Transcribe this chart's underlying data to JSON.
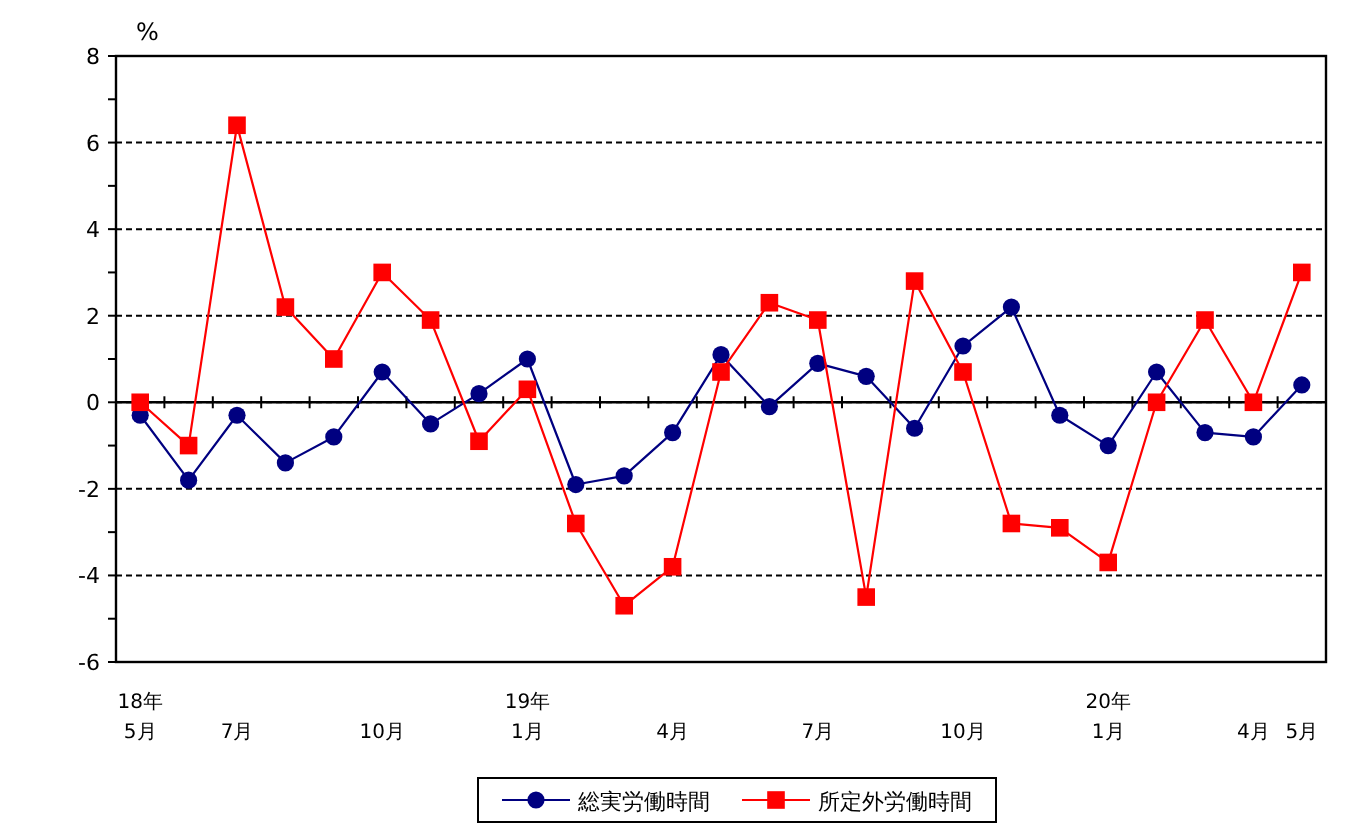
{
  "chart_data": {
    "type": "line",
    "ylabel": "%",
    "categories": [
      "18年\n5月",
      null,
      "7月",
      null,
      null,
      "10月",
      null,
      null,
      "19年\n1月",
      null,
      null,
      "4月",
      null,
      null,
      "7月",
      null,
      null,
      "10月",
      null,
      null,
      "20年\n1月",
      null,
      null,
      "4月",
      "5月"
    ],
    "series": [
      {
        "name": "総実労働時間",
        "color": "#000080",
        "marker": "circle",
        "values": [
          -0.3,
          -1.8,
          -0.3,
          -1.4,
          -0.8,
          0.7,
          -0.5,
          0.2,
          1.0,
          -1.9,
          -1.7,
          -0.7,
          1.1,
          -0.1,
          0.9,
          0.6,
          -0.6,
          1.3,
          2.2,
          -0.3,
          -1.0,
          0.7,
          -0.7,
          -0.8,
          0.4
        ]
      },
      {
        "name": "所定外労働時間",
        "color": "#ff0000",
        "marker": "square",
        "values": [
          0.0,
          -1.0,
          6.4,
          2.2,
          1.0,
          3.0,
          1.9,
          -0.9,
          0.3,
          -2.8,
          -4.7,
          -3.8,
          0.7,
          2.3,
          1.9,
          -4.5,
          2.8,
          0.7,
          -2.8,
          -2.9,
          -3.7,
          0.0,
          1.9,
          0.0,
          3.0
        ]
      }
    ],
    "ylim": [
      -6,
      8
    ],
    "yticks": [
      -6,
      {
        "value": -5,
        "label": null
      },
      -4,
      {
        "value": -3,
        "label": null
      },
      -2,
      {
        "value": -1,
        "label": null
      },
      0,
      {
        "value": 1,
        "label": null
      },
      2,
      {
        "value": 3,
        "label": null
      },
      4,
      {
        "value": 5,
        "label": null
      },
      6,
      {
        "value": 7,
        "label": null
      },
      8
    ],
    "grid": "y",
    "legend": "bottom"
  }
}
